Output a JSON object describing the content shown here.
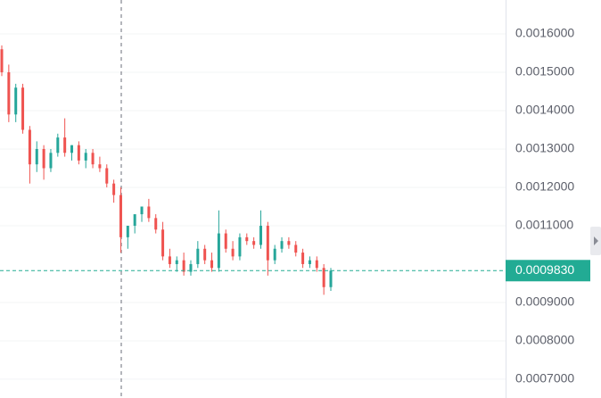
{
  "chart_data": {
    "type": "candlestick",
    "open": [
      0.00156,
      0.0015,
      0.00139,
      0.00146,
      0.00135,
      0.00126,
      0.0013,
      0.00125,
      0.00129,
      0.00133,
      0.00129,
      0.00131,
      0.00127,
      0.00129,
      0.00126,
      0.00125,
      0.00121,
      0.00118,
      0.00107,
      0.0011,
      0.00113,
      0.00115,
      0.00112,
      0.00109,
      0.00102,
      0.001,
      0.00101,
      0.00098,
      0.001,
      0.00104,
      0.00101,
      0.00099,
      0.00108,
      0.00104,
      0.00102,
      0.00107,
      0.00106,
      0.00105,
      0.0011,
      0.00101,
      0.00104,
      0.00106,
      0.00105,
      0.00103,
      0.001,
      0.00101,
      0.00099,
      0.00094
    ],
    "high": [
      0.00157,
      0.00152,
      0.00147,
      0.00147,
      0.00136,
      0.00132,
      0.00131,
      0.0013,
      0.00134,
      0.00138,
      0.00131,
      0.00132,
      0.0013,
      0.0013,
      0.00128,
      0.00126,
      0.00122,
      0.0012,
      0.00109,
      0.00112,
      0.00114,
      0.00117,
      0.00113,
      0.00111,
      0.00104,
      0.00102,
      0.00103,
      0.00101,
      0.00106,
      0.00105,
      0.00103,
      0.00114,
      0.00109,
      0.00106,
      0.00108,
      0.00108,
      0.00107,
      0.00114,
      0.00111,
      0.00105,
      0.00107,
      0.00107,
      0.00106,
      0.00104,
      0.00102,
      0.00102,
      0.001,
      0.00099
    ],
    "low": [
      0.00149,
      0.00137,
      0.00137,
      0.00134,
      0.00121,
      0.00124,
      0.00122,
      0.00124,
      0.00128,
      0.00128,
      0.00127,
      0.00126,
      0.00125,
      0.00125,
      0.00124,
      0.0012,
      0.00116,
      0.00103,
      0.00104,
      0.00108,
      0.00111,
      0.00111,
      0.00108,
      0.00101,
      0.00099,
      0.00098,
      0.00097,
      0.00097,
      0.00099,
      0.001,
      0.00098,
      0.00098,
      0.00103,
      0.00101,
      0.00101,
      0.00105,
      0.00104,
      0.00104,
      0.00097,
      0.001,
      0.00103,
      0.00104,
      0.00102,
      0.00099,
      0.00099,
      0.00098,
      0.00092,
      0.00093
    ],
    "close": [
      0.0015,
      0.00139,
      0.00146,
      0.00135,
      0.00126,
      0.0013,
      0.00125,
      0.00129,
      0.00133,
      0.00129,
      0.00131,
      0.00127,
      0.00129,
      0.00126,
      0.00125,
      0.00121,
      0.00118,
      0.00107,
      0.0011,
      0.00113,
      0.00115,
      0.00112,
      0.00109,
      0.00102,
      0.001,
      0.00101,
      0.00098,
      0.001,
      0.00104,
      0.00101,
      0.00099,
      0.00108,
      0.00104,
      0.00102,
      0.00107,
      0.00106,
      0.00105,
      0.0011,
      0.00101,
      0.00104,
      0.00106,
      0.00105,
      0.00103,
      0.001,
      0.00101,
      0.00099,
      0.00094,
      0.000983
    ],
    "up_color": "#26a69a",
    "down_color": "#ef5350",
    "current_price": {
      "value": 0.000983,
      "label": "0.0009830"
    },
    "current_price_color": "#22ab94",
    "ylim": [
      0.000651,
      0.0016884
    ],
    "yticks": [
      {
        "value": 0.0016,
        "label": "0.0016000"
      },
      {
        "value": 0.0015,
        "label": "0.0015000"
      },
      {
        "value": 0.0014,
        "label": "0.0014000"
      },
      {
        "value": 0.0013,
        "label": "0.0013000"
      },
      {
        "value": 0.0012,
        "label": "0.0012000"
      },
      {
        "value": 0.0011,
        "label": "0.0011000"
      },
      {
        "value": 0.0009,
        "label": "0.0009000"
      },
      {
        "value": 0.0008,
        "label": "0.0008000"
      },
      {
        "value": 0.0007,
        "label": "0.0007000"
      }
    ],
    "grid": true
  }
}
